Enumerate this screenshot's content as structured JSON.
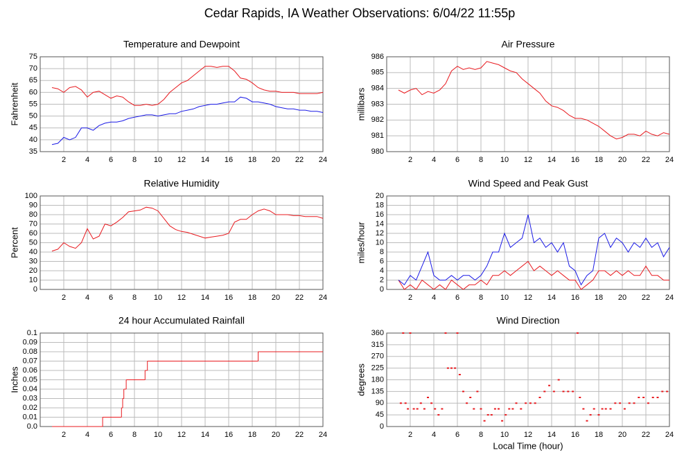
{
  "title": "Cedar Rapids, IA Weather Observations: 6/04/22 11:55p",
  "chart_data": [
    {
      "type": "line",
      "title": "Temperature and Dewpoint",
      "ylabel": "Fahrenheit",
      "x": [
        1,
        1.5,
        2,
        2.5,
        3,
        3.5,
        4,
        4.5,
        5,
        5.5,
        6,
        6.5,
        7,
        7.5,
        8,
        8.5,
        9,
        9.5,
        10,
        10.5,
        11,
        11.5,
        12,
        12.5,
        13,
        13.5,
        14,
        14.5,
        15,
        15.5,
        16,
        16.5,
        17,
        17.5,
        18,
        18.5,
        19,
        19.5,
        20,
        20.5,
        21,
        21.5,
        22,
        22.5,
        23,
        23.5,
        24
      ],
      "series": [
        {
          "color": "#e8191e",
          "values": [
            62,
            61.5,
            60,
            62,
            62.5,
            61,
            58,
            60,
            60.5,
            59,
            57.5,
            58.5,
            58,
            56,
            54.5,
            54.5,
            55,
            54.5,
            55,
            57,
            60,
            62,
            64,
            65,
            67,
            69,
            71,
            71,
            70.5,
            71,
            71,
            69,
            66,
            65.5,
            64,
            62,
            61,
            60.5,
            60.5,
            60,
            60,
            60,
            59.5,
            59.5,
            59.5,
            59.5,
            60
          ]
        },
        {
          "color": "#1a1ae6",
          "values": [
            38,
            38.5,
            41,
            40,
            41,
            45,
            45,
            44,
            46,
            47,
            47.5,
            47.5,
            48,
            49,
            49.5,
            50,
            50.5,
            50.5,
            50,
            50.5,
            51,
            51,
            52,
            52.5,
            53,
            54,
            54.5,
            55,
            55,
            55.5,
            56,
            56,
            58,
            57.5,
            56,
            56,
            55.5,
            55,
            54,
            53.5,
            53,
            53,
            52.5,
            52.5,
            52,
            52,
            51.5
          ]
        }
      ],
      "xlim": [
        0,
        24
      ],
      "xticks": [
        2,
        4,
        6,
        8,
        10,
        12,
        14,
        16,
        18,
        20,
        22,
        24
      ],
      "ylim": [
        35,
        75
      ],
      "yticks": [
        35,
        40,
        45,
        50,
        55,
        60,
        65,
        70,
        75
      ],
      "grid": true
    },
    {
      "type": "line",
      "title": "Air Pressure",
      "ylabel": "millibars",
      "x": [
        1,
        1.5,
        2,
        2.5,
        3,
        3.5,
        4,
        4.5,
        5,
        5.5,
        6,
        6.5,
        7,
        7.5,
        8,
        8.5,
        9,
        9.5,
        10,
        10.5,
        11,
        11.5,
        12,
        12.5,
        13,
        13.5,
        14,
        14.5,
        15,
        15.5,
        16,
        16.5,
        17,
        17.5,
        18,
        18.5,
        19,
        19.5,
        20,
        20.5,
        21,
        21.5,
        22,
        22.5,
        23,
        23.5,
        24
      ],
      "series": [
        {
          "color": "#e8191e",
          "values": [
            983.9,
            983.7,
            983.9,
            984,
            983.6,
            983.8,
            983.7,
            983.9,
            984.3,
            985.1,
            985.4,
            985.2,
            985.3,
            985.2,
            985.3,
            985.7,
            985.6,
            985.5,
            985.3,
            985.1,
            985,
            984.6,
            984.3,
            984,
            983.7,
            983.2,
            982.9,
            982.8,
            982.6,
            982.3,
            982.1,
            982.1,
            982,
            981.8,
            981.6,
            981.3,
            981,
            980.8,
            980.9,
            981.1,
            981.1,
            981,
            981.3,
            981.1,
            981,
            981.2,
            981.1
          ]
        }
      ],
      "xlim": [
        0,
        24
      ],
      "xticks": [
        2,
        4,
        6,
        8,
        10,
        12,
        14,
        16,
        18,
        20,
        22,
        24
      ],
      "ylim": [
        980,
        986
      ],
      "yticks": [
        980,
        981,
        982,
        983,
        984,
        985,
        986
      ],
      "grid": true
    },
    {
      "type": "line",
      "title": "Relative Humidity",
      "ylabel": "Percent",
      "x": [
        1,
        1.5,
        2,
        2.5,
        3,
        3.5,
        4,
        4.5,
        5,
        5.5,
        6,
        6.5,
        7,
        7.5,
        8,
        8.5,
        9,
        9.5,
        10,
        10.5,
        11,
        11.5,
        12,
        12.5,
        13,
        13.5,
        14,
        14.5,
        15,
        15.5,
        16,
        16.5,
        17,
        17.5,
        18,
        18.5,
        19,
        19.5,
        20,
        20.5,
        21,
        21.5,
        22,
        22.5,
        23,
        23.5,
        24
      ],
      "series": [
        {
          "color": "#e8191e",
          "values": [
            41,
            43,
            50,
            46,
            44,
            50,
            65,
            54,
            57,
            70,
            68,
            72,
            77,
            83,
            84,
            85,
            88,
            87,
            84,
            76,
            68,
            64,
            62,
            61,
            59,
            57,
            55,
            56,
            57,
            58,
            60,
            72,
            75,
            75,
            80,
            84,
            86,
            84,
            80,
            80,
            80,
            79,
            79,
            78,
            78,
            78,
            76
          ]
        }
      ],
      "xlim": [
        0,
        24
      ],
      "xticks": [
        2,
        4,
        6,
        8,
        10,
        12,
        14,
        16,
        18,
        20,
        22,
        24
      ],
      "ylim": [
        0,
        100
      ],
      "yticks": [
        0,
        10,
        20,
        30,
        40,
        50,
        60,
        70,
        80,
        90,
        100
      ],
      "grid": true
    },
    {
      "type": "line",
      "title": "Wind Speed and Peak Gust",
      "ylabel": "miles/hour",
      "x": [
        1,
        1.5,
        2,
        2.5,
        3,
        3.5,
        4,
        4.5,
        5,
        5.5,
        6,
        6.5,
        7,
        7.5,
        8,
        8.5,
        9,
        9.5,
        10,
        10.5,
        11,
        11.5,
        12,
        12.5,
        13,
        13.5,
        14,
        14.5,
        15,
        15.5,
        16,
        16.5,
        17,
        17.5,
        18,
        18.5,
        19,
        19.5,
        20,
        20.5,
        21,
        21.5,
        22,
        22.5,
        23,
        23.5,
        24
      ],
      "series": [
        {
          "color": "#e8191e",
          "values": [
            2,
            0,
            1,
            0,
            2,
            1,
            0,
            1,
            0,
            2,
            1,
            0,
            1,
            1,
            2,
            1,
            3,
            3,
            4,
            3,
            4,
            5,
            6,
            4,
            5,
            4,
            3,
            4,
            3,
            2,
            2,
            0,
            1,
            2,
            4,
            4,
            3,
            4,
            3,
            4,
            3,
            3,
            5,
            3,
            3,
            2,
            2
          ]
        },
        {
          "color": "#1a1ae6",
          "values": [
            2,
            1,
            3,
            2,
            5,
            8,
            3,
            2,
            2,
            3,
            2,
            3,
            3,
            2,
            3,
            5,
            8,
            8,
            12,
            9,
            10,
            11,
            16,
            10,
            11,
            9,
            10,
            8,
            10,
            5,
            4,
            1,
            3,
            4,
            11,
            12,
            9,
            11,
            10,
            8,
            10,
            9,
            11,
            9,
            10,
            7,
            9
          ]
        }
      ],
      "xlim": [
        0,
        24
      ],
      "xticks": [
        2,
        4,
        6,
        8,
        10,
        12,
        14,
        16,
        18,
        20,
        22,
        24
      ],
      "ylim": [
        0,
        20
      ],
      "yticks": [
        0,
        2,
        4,
        6,
        8,
        10,
        12,
        14,
        16,
        18,
        20
      ],
      "grid": true
    },
    {
      "type": "line",
      "step": true,
      "title": "24 hour Accumulated Rainfall",
      "ylabel": "Inches",
      "x": [
        1,
        5.3,
        6.9,
        7.0,
        7.1,
        7.3,
        8.9,
        9.1,
        18.5,
        24
      ],
      "series": [
        {
          "color": "#e8191e",
          "values": [
            0,
            0.01,
            0.02,
            0.03,
            0.04,
            0.05,
            0.06,
            0.07,
            0.08,
            0.08
          ]
        }
      ],
      "xlim": [
        0,
        24
      ],
      "xticks": [
        2,
        4,
        6,
        8,
        10,
        12,
        14,
        16,
        18,
        20,
        22,
        24
      ],
      "ylim": [
        0,
        0.1
      ],
      "yticks": [
        {
          "value": 0,
          "label": "0.0"
        },
        0.01,
        0.02,
        0.03,
        0.04,
        0.05,
        0.06,
        0.07,
        0.08,
        0.09,
        0.1
      ],
      "grid": true
    },
    {
      "type": "scatter",
      "title": "Wind Direction",
      "ylabel": "degrees",
      "xlabel": "Local Time (hour)",
      "color": "#e8191e",
      "x": [
        1.2,
        1.4,
        1.6,
        1.8,
        2.0,
        2.3,
        2.6,
        2.9,
        3.2,
        3.5,
        3.8,
        4.1,
        4.4,
        4.7,
        5.0,
        5.2,
        5.5,
        5.8,
        6.0,
        6.2,
        6.5,
        6.8,
        7.1,
        7.4,
        7.7,
        8.0,
        8.3,
        8.6,
        8.9,
        9.2,
        9.5,
        9.8,
        10.1,
        10.4,
        10.7,
        11.0,
        11.4,
        11.8,
        12.2,
        12.6,
        13.0,
        13.4,
        13.8,
        14.2,
        14.6,
        15.0,
        15.4,
        15.8,
        16.2,
        16.4,
        16.7,
        17.0,
        17.3,
        17.6,
        18.0,
        18.3,
        18.6,
        19.0,
        19.4,
        19.8,
        20.2,
        20.6,
        21.0,
        21.4,
        21.8,
        22.2,
        22.6,
        23.0,
        23.4,
        23.8
      ],
      "values": [
        90,
        360,
        90,
        68,
        360,
        68,
        68,
        90,
        68,
        112,
        90,
        68,
        45,
        68,
        360,
        225,
        225,
        225,
        360,
        200,
        135,
        90,
        112,
        68,
        135,
        68,
        22,
        45,
        45,
        68,
        68,
        22,
        45,
        68,
        68,
        90,
        68,
        90,
        90,
        90,
        112,
        135,
        158,
        135,
        180,
        135,
        135,
        135,
        360,
        112,
        68,
        22,
        45,
        68,
        45,
        68,
        68,
        68,
        90,
        90,
        68,
        90,
        90,
        112,
        112,
        90,
        112,
        112,
        135,
        135
      ],
      "xlim": [
        0,
        24
      ],
      "xticks": [
        2,
        4,
        6,
        8,
        10,
        12,
        14,
        16,
        18,
        20,
        22,
        24
      ],
      "ylim": [
        0,
        360
      ],
      "yticks": [
        0,
        45,
        90,
        135,
        180,
        225,
        270,
        315,
        360
      ],
      "grid": true
    }
  ]
}
